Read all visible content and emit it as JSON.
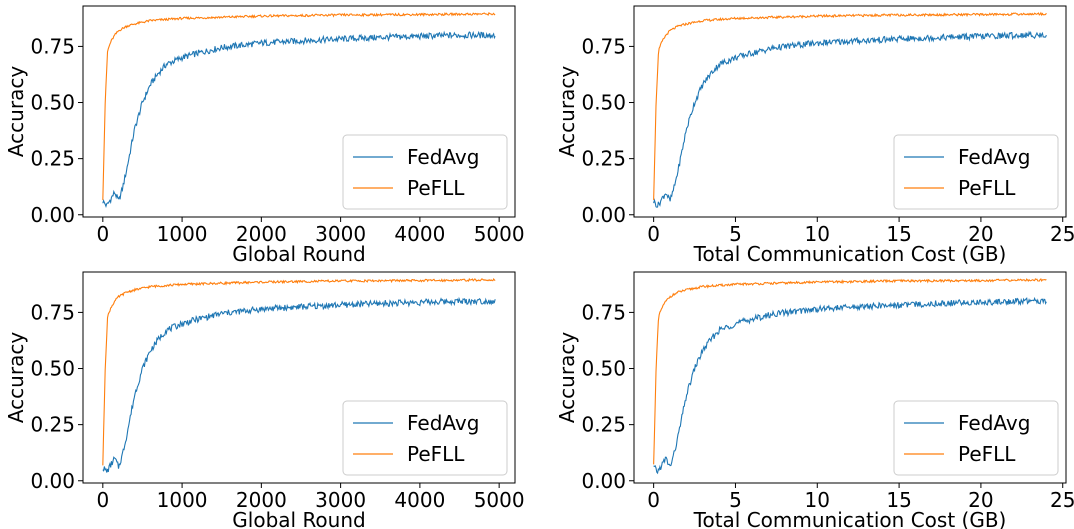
{
  "colors": {
    "fedavg": "#1f77b4",
    "pefll": "#ff7f0e"
  },
  "chart_data": [
    {
      "type": "line",
      "xlabel": "Global Round",
      "ylabel": "Accuracy",
      "xlim": [
        -250,
        5200
      ],
      "ylim": [
        -0.01,
        0.93
      ],
      "xticks": [
        0,
        1000,
        2000,
        3000,
        4000,
        5000
      ],
      "xtick_labels": [
        "0",
        "1000",
        "2000",
        "3000",
        "4000",
        "5000"
      ],
      "yticks": [
        0,
        0.25,
        0.5,
        0.75
      ],
      "ytick_labels": [
        "0.00",
        "0.25",
        "0.50",
        "0.75"
      ],
      "legend": {
        "position": "lower-right",
        "entries": [
          "FedAvg",
          "PeFLL"
        ]
      },
      "grid": false,
      "series": [
        {
          "name": "FedAvg",
          "color": "#1f77b4",
          "x": [
            0,
            50,
            100,
            150,
            200,
            250,
            300,
            400,
            500,
            600,
            700,
            800,
            1000,
            1200,
            1500,
            2000,
            2500,
            3000,
            3500,
            4000,
            4500,
            4950
          ],
          "y": [
            0.06,
            0.04,
            0.07,
            0.1,
            0.06,
            0.12,
            0.2,
            0.38,
            0.5,
            0.58,
            0.63,
            0.67,
            0.7,
            0.72,
            0.745,
            0.765,
            0.775,
            0.783,
            0.79,
            0.795,
            0.8,
            0.8
          ]
        },
        {
          "name": "PeFLL",
          "color": "#ff7f0e",
          "x": [
            0,
            30,
            60,
            100,
            150,
            200,
            300,
            400,
            600,
            1000,
            1500,
            2000,
            3000,
            4000,
            4950
          ],
          "y": [
            0.07,
            0.5,
            0.73,
            0.77,
            0.8,
            0.82,
            0.84,
            0.85,
            0.865,
            0.875,
            0.88,
            0.885,
            0.89,
            0.892,
            0.895
          ]
        }
      ]
    },
    {
      "type": "line",
      "xlabel": "Total Communication Cost (GB)",
      "ylabel": "Accuracy",
      "xlim": [
        -1.2,
        25.2
      ],
      "ylim": [
        -0.01,
        0.93
      ],
      "xticks": [
        0,
        5,
        10,
        15,
        20,
        25
      ],
      "xtick_labels": [
        "0",
        "5",
        "10",
        "15",
        "20",
        "25"
      ],
      "yticks": [
        0,
        0.25,
        0.5,
        0.75
      ],
      "ytick_labels": [
        "0.00",
        "0.25",
        "0.50",
        "0.75"
      ],
      "legend": {
        "position": "lower-right",
        "entries": [
          "FedAvg",
          "PeFLL"
        ]
      },
      "grid": false,
      "series": [
        {
          "name": "FedAvg",
          "color": "#1f77b4",
          "x": [
            0,
            0.25,
            0.5,
            0.75,
            1.0,
            1.25,
            1.5,
            2,
            2.5,
            3,
            3.5,
            4,
            5,
            6,
            7.5,
            10,
            12.5,
            15,
            17.5,
            20,
            22.5,
            24
          ],
          "y": [
            0.06,
            0.04,
            0.07,
            0.1,
            0.06,
            0.12,
            0.2,
            0.38,
            0.5,
            0.58,
            0.63,
            0.67,
            0.7,
            0.72,
            0.745,
            0.765,
            0.775,
            0.783,
            0.79,
            0.795,
            0.8,
            0.8
          ]
        },
        {
          "name": "PeFLL",
          "color": "#ff7f0e",
          "x": [
            0,
            0.15,
            0.3,
            0.5,
            0.75,
            1.0,
            1.5,
            2,
            3,
            5,
            7.5,
            10,
            15,
            20,
            24
          ],
          "y": [
            0.07,
            0.5,
            0.73,
            0.77,
            0.8,
            0.82,
            0.84,
            0.85,
            0.865,
            0.875,
            0.88,
            0.885,
            0.89,
            0.892,
            0.895
          ]
        }
      ]
    },
    {
      "type": "line",
      "xlabel": "Global Round",
      "ylabel": "Accuracy",
      "xlim": [
        -250,
        5200
      ],
      "ylim": [
        -0.01,
        0.93
      ],
      "xticks": [
        0,
        1000,
        2000,
        3000,
        4000,
        5000
      ],
      "xtick_labels": [
        "0",
        "1000",
        "2000",
        "3000",
        "4000",
        "5000"
      ],
      "yticks": [
        0,
        0.25,
        0.5,
        0.75
      ],
      "ytick_labels": [
        "0.00",
        "0.25",
        "0.50",
        "0.75"
      ],
      "legend": {
        "position": "lower-right",
        "entries": [
          "FedAvg",
          "PeFLL"
        ]
      },
      "grid": false,
      "series": [
        {
          "name": "FedAvg",
          "color": "#1f77b4",
          "x": [
            0,
            50,
            100,
            150,
            200,
            250,
            300,
            400,
            500,
            600,
            700,
            800,
            1000,
            1200,
            1500,
            2000,
            2500,
            3000,
            3500,
            4000,
            4500,
            4950
          ],
          "y": [
            0.06,
            0.04,
            0.07,
            0.1,
            0.06,
            0.12,
            0.2,
            0.38,
            0.5,
            0.58,
            0.63,
            0.67,
            0.7,
            0.72,
            0.745,
            0.765,
            0.775,
            0.783,
            0.79,
            0.795,
            0.8,
            0.8
          ]
        },
        {
          "name": "PeFLL",
          "color": "#ff7f0e",
          "x": [
            0,
            30,
            60,
            100,
            150,
            200,
            300,
            400,
            600,
            1000,
            1500,
            2000,
            3000,
            4000,
            4950
          ],
          "y": [
            0.07,
            0.5,
            0.73,
            0.77,
            0.8,
            0.82,
            0.84,
            0.85,
            0.865,
            0.875,
            0.88,
            0.885,
            0.89,
            0.892,
            0.895
          ]
        }
      ]
    },
    {
      "type": "line",
      "xlabel": "Total Communication Cost (GB)",
      "ylabel": "Accuracy",
      "xlim": [
        -1.2,
        25.2
      ],
      "ylim": [
        -0.01,
        0.93
      ],
      "xticks": [
        0,
        5,
        10,
        15,
        20,
        25
      ],
      "xtick_labels": [
        "0",
        "5",
        "10",
        "15",
        "20",
        "25"
      ],
      "yticks": [
        0,
        0.25,
        0.5,
        0.75
      ],
      "ytick_labels": [
        "0.00",
        "0.25",
        "0.50",
        "0.75"
      ],
      "legend": {
        "position": "lower-right",
        "entries": [
          "FedAvg",
          "PeFLL"
        ]
      },
      "grid": false,
      "series": [
        {
          "name": "FedAvg",
          "color": "#1f77b4",
          "x": [
            0,
            0.25,
            0.5,
            0.75,
            1.0,
            1.25,
            1.5,
            2,
            2.5,
            3,
            3.5,
            4,
            5,
            6,
            7.5,
            10,
            12.5,
            15,
            17.5,
            20,
            22.5,
            24
          ],
          "y": [
            0.06,
            0.04,
            0.07,
            0.1,
            0.06,
            0.12,
            0.2,
            0.38,
            0.5,
            0.58,
            0.63,
            0.67,
            0.7,
            0.72,
            0.745,
            0.765,
            0.775,
            0.783,
            0.79,
            0.795,
            0.8,
            0.8
          ]
        },
        {
          "name": "PeFLL",
          "color": "#ff7f0e",
          "x": [
            0,
            0.15,
            0.3,
            0.5,
            0.75,
            1.0,
            1.5,
            2,
            3,
            5,
            7.5,
            10,
            15,
            20,
            24
          ],
          "y": [
            0.07,
            0.5,
            0.73,
            0.77,
            0.8,
            0.82,
            0.84,
            0.85,
            0.865,
            0.875,
            0.88,
            0.885,
            0.89,
            0.892,
            0.895
          ]
        }
      ]
    }
  ]
}
